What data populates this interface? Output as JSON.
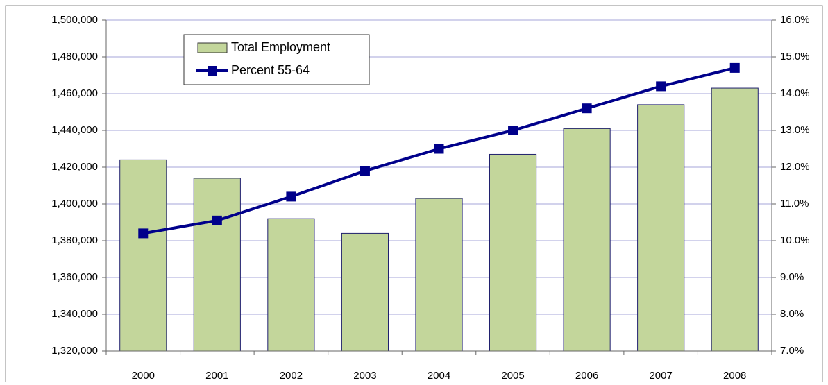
{
  "chart_data": {
    "type": "bar-line",
    "categories": [
      "2000",
      "2001",
      "2002",
      "2003",
      "2004",
      "2005",
      "2006",
      "2007",
      "2008"
    ],
    "series": [
      {
        "name": "Total Employment",
        "type": "bar",
        "color": "#c3d69b",
        "values": [
          1424000,
          1414000,
          1392000,
          1384000,
          1403000,
          1427000,
          1441000,
          1454000,
          1463000
        ]
      },
      {
        "name": "Percent 55-64",
        "type": "line",
        "axis": "y2",
        "color": "#00008b",
        "values": [
          10.2,
          10.55,
          11.2,
          11.9,
          12.5,
          13.0,
          13.6,
          14.2,
          14.7
        ]
      }
    ],
    "ylim": [
      1320000,
      1500000
    ],
    "yticks": [
      {
        "value": 1320000,
        "label": "1,320,000"
      },
      {
        "value": 1340000,
        "label": "1,340,000"
      },
      {
        "value": 1360000,
        "label": "1,360,000"
      },
      {
        "value": 1380000,
        "label": "1,380,000"
      },
      {
        "value": 1400000,
        "label": "1,400,000"
      },
      {
        "value": 1420000,
        "label": "1,420,000"
      },
      {
        "value": 1440000,
        "label": "1,440,000"
      },
      {
        "value": 1460000,
        "label": "1,460,000"
      },
      {
        "value": 1480000,
        "label": "1,480,000"
      },
      {
        "value": 1500000,
        "label": "1,500,000"
      }
    ],
    "y2lim": [
      7,
      16
    ],
    "y2ticks": [
      {
        "value": 7,
        "label": "7.0%"
      },
      {
        "value": 8,
        "label": "8.0%"
      },
      {
        "value": 9,
        "label": "9.0%"
      },
      {
        "value": 10,
        "label": "10.0%"
      },
      {
        "value": 11,
        "label": "11.0%"
      },
      {
        "value": 12,
        "label": "12.0%"
      },
      {
        "value": 13,
        "label": "13.0%"
      },
      {
        "value": 14,
        "label": "14.0%"
      },
      {
        "value": 15,
        "label": "15.0%"
      },
      {
        "value": 16,
        "label": "16.0%"
      }
    ],
    "grid": true
  }
}
